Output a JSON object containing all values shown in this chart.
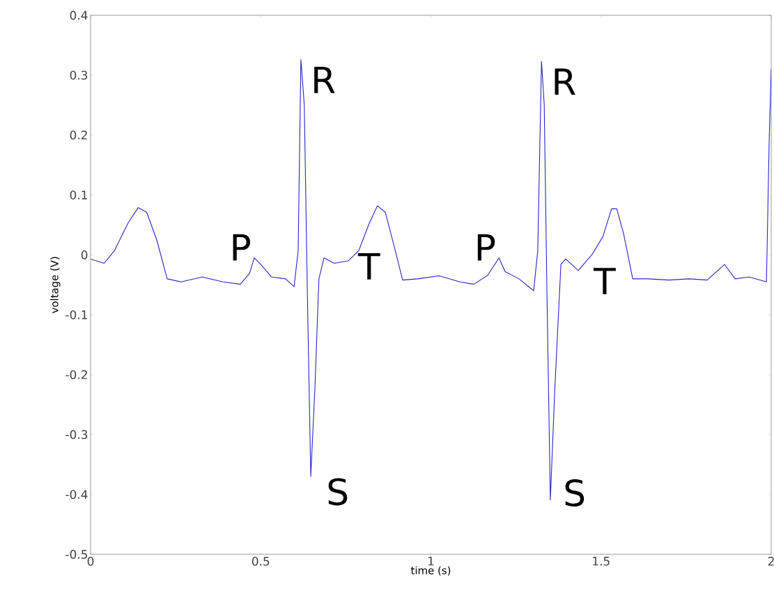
{
  "chart_data": {
    "type": "line",
    "xlabel": "time (s)",
    "ylabel": "voltage (V)",
    "xlim": [
      0,
      2
    ],
    "ylim": [
      -0.5,
      0.4
    ],
    "xticks": [
      0,
      0.5,
      1,
      1.5,
      2
    ],
    "yticks": [
      -0.5,
      -0.4,
      -0.3,
      -0.2,
      -0.1,
      0,
      0.1,
      0.2,
      0.3,
      0.4
    ],
    "grid": false,
    "marker": "none",
    "line_style": "solid",
    "series": [
      {
        "color": "#2626c8",
        "x": [
          0,
          0.04,
          0.07,
          0.11,
          0.14,
          0.165,
          0.195,
          0.225,
          0.266,
          0.328,
          0.389,
          0.44,
          0.467,
          0.481,
          0.5,
          0.532,
          0.573,
          0.598,
          0.61,
          0.618,
          0.628,
          0.637,
          0.647,
          0.659,
          0.671,
          0.686,
          0.716,
          0.757,
          0.788,
          0.819,
          0.843,
          0.866,
          0.89,
          0.917,
          0.962,
          1.024,
          1.085,
          1.126,
          1.167,
          1.2,
          1.218,
          1.259,
          1.302,
          1.314,
          1.325,
          1.333,
          1.341,
          1.351,
          1.364,
          1.382,
          1.396,
          1.433,
          1.474,
          1.505,
          1.531,
          1.546,
          1.566,
          1.593,
          1.638,
          1.699,
          1.76,
          1.812,
          1.863,
          1.894,
          1.935,
          1.986,
          1.994,
          2.0
        ],
        "values": [
          -0.007,
          -0.014,
          0.007,
          0.053,
          0.079,
          0.071,
          0.024,
          -0.04,
          -0.045,
          -0.037,
          -0.045,
          -0.049,
          -0.031,
          -0.005,
          -0.016,
          -0.037,
          -0.04,
          -0.053,
          0.007,
          0.326,
          0.25,
          -0.063,
          -0.37,
          -0.225,
          -0.04,
          -0.005,
          -0.014,
          -0.01,
          0.007,
          0.053,
          0.082,
          0.071,
          0.019,
          -0.042,
          -0.04,
          -0.035,
          -0.045,
          -0.049,
          -0.034,
          -0.005,
          -0.028,
          -0.04,
          -0.06,
          0.007,
          0.323,
          0.251,
          -0.063,
          -0.409,
          -0.225,
          -0.016,
          -0.007,
          -0.026,
          0.001,
          0.03,
          0.077,
          0.077,
          0.036,
          -0.04,
          -0.04,
          -0.042,
          -0.04,
          -0.042,
          -0.016,
          -0.04,
          -0.037,
          -0.045,
          0.19,
          0.31
        ]
      }
    ],
    "annotations": [
      {
        "text": "R",
        "x": 0.618,
        "y": 0.326
      },
      {
        "text": "R",
        "x": 1.325,
        "y": 0.323
      },
      {
        "text": "P",
        "x": 0.481,
        "y": -0.005
      },
      {
        "text": "P",
        "x": 1.2,
        "y": -0.005
      },
      {
        "text": "T",
        "x": 0.843,
        "y": 0.082
      },
      {
        "text": "T",
        "x": 1.531,
        "y": 0.077
      },
      {
        "text": "S",
        "x": 0.647,
        "y": -0.37
      },
      {
        "text": "S",
        "x": 1.351,
        "y": -0.409
      }
    ]
  }
}
